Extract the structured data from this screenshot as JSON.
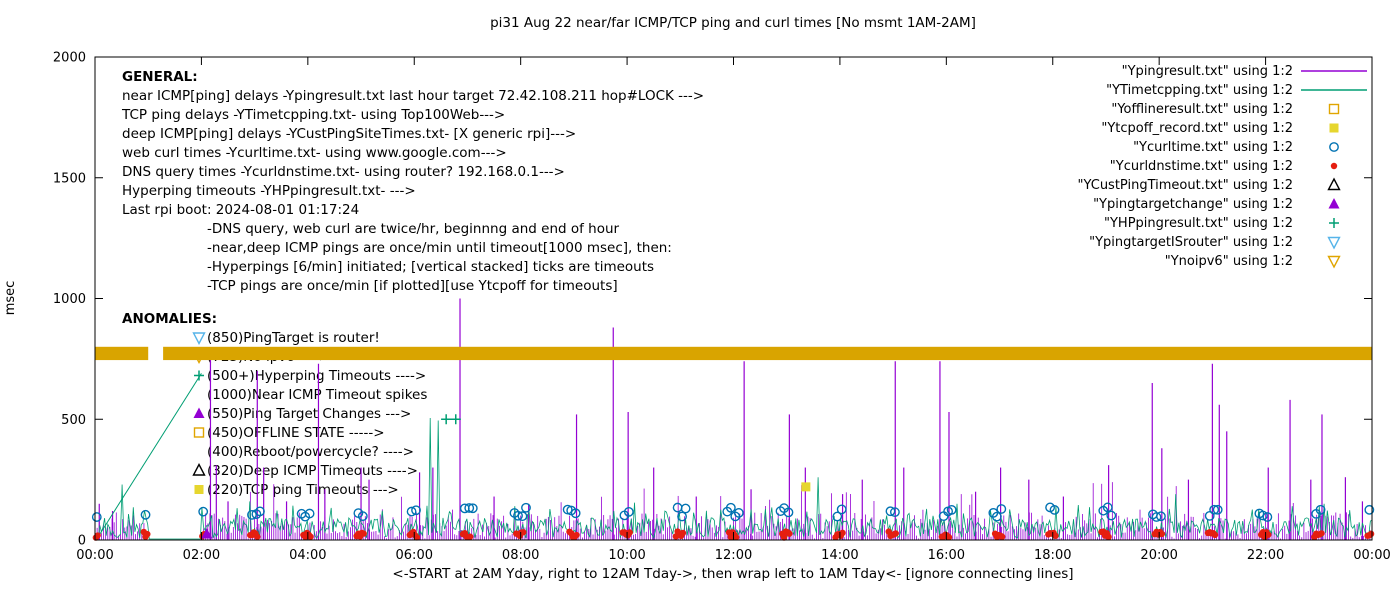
{
  "title": "pi31 Aug 22  near/far ICMP/TCP ping and curl times [No msmt 1AM-2AM]",
  "ylabel": "msec",
  "xlabel": "<-START at 2AM Yday, right to 12AM Tday->, then wrap left to 1AM Tday<- [ignore connecting lines]",
  "axes": {
    "y_ticks": [
      0,
      500,
      1000,
      1500,
      2000
    ],
    "x_tick_labels": [
      "00:00",
      "02:00",
      "04:00",
      "06:00",
      "08:00",
      "10:00",
      "12:00",
      "14:00",
      "16:00",
      "18:00",
      "20:00",
      "22:00",
      "00:00"
    ],
    "x_tick_hours": [
      0,
      2,
      4,
      6,
      8,
      10,
      12,
      14,
      16,
      18,
      20,
      22,
      24
    ],
    "ylim": [
      0,
      2000
    ],
    "xlim_hours": [
      0,
      24
    ],
    "grid": false,
    "legend_position": "top-right-inside"
  },
  "colors": {
    "violet": "#9400d3",
    "green": "#009e73",
    "skyblue": "#56b4e9",
    "orange": "#e0a500",
    "band": "#d9a400",
    "yellow": "#e6d62e",
    "blue": "#0072b2",
    "red": "#e51e10",
    "black": "#000000"
  },
  "legend": [
    {
      "label": "\"Ypingresult.txt\" using 1:2",
      "marker": "line",
      "color": "#9400d3"
    },
    {
      "label": "\"YTimetcpping.txt\" using 1:2",
      "marker": "line",
      "color": "#009e73"
    },
    {
      "label": "\"Yofflineresult.txt\" using 1:2",
      "marker": "square-open",
      "color": "#e0a500"
    },
    {
      "label": "\"Ytcpoff_record.txt\" using 1:2",
      "marker": "square-filled",
      "color": "#e6d62e"
    },
    {
      "label": "\"Ycurltime.txt\" using 1:2",
      "marker": "circle-open",
      "color": "#0072b2"
    },
    {
      "label": "\"Ycurldnstime.txt\" using 1:2",
      "marker": "circle-filled",
      "color": "#e51e10"
    },
    {
      "label": "\"YCustPingTimeout.txt\" using 1:2",
      "marker": "triangle-up-open",
      "color": "#000000"
    },
    {
      "label": "\"Ypingtargetchange\" using 1:2",
      "marker": "triangle-up-filled",
      "color": "#9400d3"
    },
    {
      "label": "\"YHPpingresult.txt\" using 1:2",
      "marker": "plus",
      "color": "#009e73"
    },
    {
      "label": "\"YpingtargetISrouter\" using 1:2",
      "marker": "triangle-down-open",
      "color": "#56b4e9"
    },
    {
      "label": "\"Ynoipv6\" using 1:2",
      "marker": "triangle-down-open",
      "color": "#e0a500"
    }
  ],
  "general": {
    "header": "GENERAL:",
    "lines": [
      {
        "text": "near ICMP[ping] delays -Ypingresult.txt last hour target 72.42.108.211 hop#LOCK --->",
        "indent": false
      },
      {
        "text": "TCP ping delays -YTimetcpping.txt- using Top100Web--->",
        "indent": false
      },
      {
        "text": "deep ICMP[ping] delays -YCustPingSiteTimes.txt- [X generic rpi]--->",
        "indent": false
      },
      {
        "text": "web curl times -Ycurltime.txt- using www.google.com--->",
        "indent": false
      },
      {
        "text": "DNS query times -Ycurldnstime.txt- using router? 192.168.0.1--->",
        "indent": false
      },
      {
        "text": "Hyperping timeouts -YHPpingresult.txt- --->",
        "indent": false
      },
      {
        "text": "Last rpi boot: 2024-08-01 01:17:24",
        "indent": false
      },
      {
        "text": "-DNS query, web curl are twice/hr, beginnng and end of hour",
        "indent": true
      },
      {
        "text": "-near,deep ICMP pings are once/min until timeout[1000 msec], then:",
        "indent": true
      },
      {
        "text": "-Hyperpings [6/min] initiated; [vertical stacked] ticks are timeouts",
        "indent": true
      },
      {
        "text": "-TCP pings are once/min [if plotted][use Ytcpoff for timeouts]",
        "indent": true
      }
    ]
  },
  "anomalies": {
    "header": "ANOMALIES:",
    "items": [
      {
        "icon": "triangle-down-open",
        "color": "#56b4e9",
        "text": "(850)PingTarget is router!"
      },
      {
        "icon": "triangle-down-open",
        "color": "#e0a500",
        "text": "(725)No ipv6 ---->"
      },
      {
        "icon": "plus",
        "color": "#009e73",
        "text": "(500+)Hyperping Timeouts ---->"
      },
      {
        "icon": "none",
        "color": "#000000",
        "text": "(1000)Near ICMP Timeout spikes"
      },
      {
        "icon": "triangle-up-filled",
        "color": "#9400d3",
        "text": "(550)Ping Target Changes --->"
      },
      {
        "icon": "square-open",
        "color": "#e0a500",
        "text": "(450)OFFLINE STATE ----->"
      },
      {
        "icon": "none",
        "color": "#000000",
        "text": "(400)Reboot/powercycle? ---->"
      },
      {
        "icon": "triangle-up-open",
        "color": "#000000",
        "text": "(320)Deep ICMP Timeouts ---->"
      },
      {
        "icon": "square-filled",
        "color": "#e6d62e",
        "text": "(220)TCP ping Timeouts --->"
      }
    ]
  },
  "chart_data": {
    "type": "mixed-time-series",
    "x_unit": "hours_since_2AM_yday",
    "no_measurement_gap_hours": [
      1,
      2
    ],
    "series": [
      {
        "name": "Ypingresult",
        "style": "impulses",
        "color": "#9400d3",
        "spikes": [
          [
            0.08,
            150
          ],
          [
            0.33,
            120
          ],
          [
            2.17,
            750
          ],
          [
            2.28,
            310
          ],
          [
            2.5,
            160
          ],
          [
            3.05,
            700
          ],
          [
            3.17,
            300
          ],
          [
            3.6,
            160
          ],
          [
            4.2,
            730
          ],
          [
            4.32,
            210
          ],
          [
            5.0,
            300
          ],
          [
            5.15,
            250
          ],
          [
            6.1,
            280
          ],
          [
            6.35,
            300
          ],
          [
            6.86,
            1000
          ],
          [
            7.5,
            180
          ],
          [
            8.15,
            150
          ],
          [
            9.05,
            520
          ],
          [
            9.74,
            880
          ],
          [
            10.02,
            530
          ],
          [
            10.5,
            300
          ],
          [
            11.3,
            180
          ],
          [
            12.2,
            740
          ],
          [
            12.33,
            210
          ],
          [
            13.05,
            520
          ],
          [
            13.35,
            300
          ],
          [
            14.05,
            190
          ],
          [
            14.42,
            250
          ],
          [
            15.04,
            740
          ],
          [
            15.2,
            300
          ],
          [
            15.88,
            740
          ],
          [
            16.05,
            530
          ],
          [
            16.55,
            200
          ],
          [
            17.02,
            300
          ],
          [
            17.55,
            250
          ],
          [
            18.2,
            180
          ],
          [
            19.05,
            310
          ],
          [
            19.87,
            650
          ],
          [
            20.05,
            380
          ],
          [
            20.55,
            250
          ],
          [
            21.0,
            730
          ],
          [
            21.13,
            560
          ],
          [
            21.27,
            450
          ],
          [
            22.05,
            300
          ],
          [
            22.46,
            580
          ],
          [
            22.85,
            250
          ],
          [
            23.06,
            520
          ],
          [
            23.5,
            260
          ],
          [
            23.82,
            160
          ]
        ],
        "noise": {
          "step_h": 0.04,
          "min": 6,
          "max": 115,
          "seed": 99
        }
      },
      {
        "name": "YTimetcpping",
        "style": "line",
        "color": "#009e73",
        "spikes": [
          [
            0.5,
            230
          ],
          [
            2.9,
            160
          ],
          [
            6.3,
            505
          ],
          [
            6.45,
            495
          ],
          [
            7.9,
            140
          ],
          [
            10.15,
            155
          ],
          [
            13.6,
            260
          ],
          [
            16.2,
            150
          ],
          [
            18.05,
            140
          ],
          [
            20.3,
            190
          ],
          [
            23.1,
            150
          ]
        ],
        "noise": {
          "step_h": 0.03,
          "min": 8,
          "max": 92,
          "quiet_value": 4,
          "seed": 77
        }
      },
      {
        "name": "Ycurltime",
        "style": "circle-open",
        "color": "#0072b2",
        "schedule": {
          "minutes": [
            2,
            57
          ],
          "extra_minutes": [
            6,
            53
          ],
          "extra_hours": [
            3,
            7,
            8,
            11,
            12,
            16,
            19,
            21
          ],
          "skip_hours": [
            1
          ]
        },
        "value_range": [
          95,
          135
        ],
        "seed": 55
      },
      {
        "name": "Ycurldnstime",
        "style": "circle-filled",
        "color": "#e51e10",
        "schedule": {
          "minutes": [
            1,
            3,
            55,
            57,
            59
          ],
          "skip_hours": [
            1
          ]
        },
        "value_range": [
          10,
          35
        ],
        "seed": 33
      },
      {
        "name": "YHPpingresult",
        "style": "plus",
        "color": "#009e73",
        "points": [
          [
            6.6,
            500
          ],
          [
            6.78,
            500
          ]
        ],
        "connecting_line": [
          [
            0.05,
            10
          ],
          [
            2.0,
            690
          ]
        ]
      },
      {
        "name": "Ytcpoff_record",
        "style": "square-filled",
        "color": "#e6d62e",
        "points": [
          [
            13.36,
            220
          ]
        ]
      },
      {
        "name": "Ypingtargetchange",
        "style": "triangle-up-filled",
        "color": "#9400d3",
        "points": [
          [
            2.1,
            25
          ]
        ]
      },
      {
        "name": "Ynoipv6",
        "style": "band",
        "color": "#d9a400",
        "band_msec": [
          745,
          800
        ],
        "gap_hours": [
          1.0,
          1.28
        ]
      }
    ]
  }
}
